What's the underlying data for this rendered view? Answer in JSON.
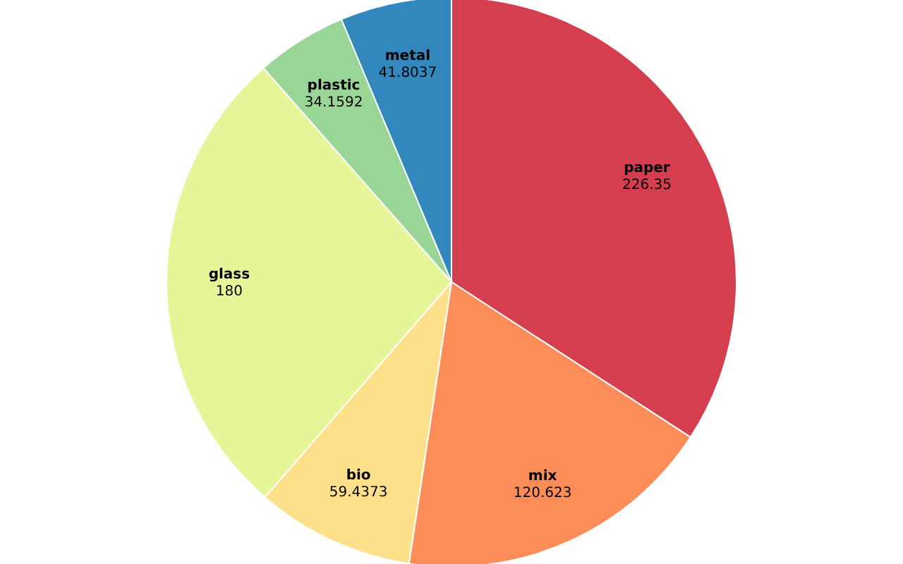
{
  "chart_data": {
    "type": "pie",
    "categories": [
      "paper",
      "mix",
      "bio",
      "glass",
      "plastic",
      "metal"
    ],
    "values": [
      226.35,
      120.623,
      59.4373,
      180,
      34.1592,
      41.8037
    ],
    "colors": [
      "#d53e4f",
      "#fc8d59",
      "#fee08b",
      "#e6f598",
      "#99d594",
      "#3288bd"
    ],
    "data_labels": true
  }
}
